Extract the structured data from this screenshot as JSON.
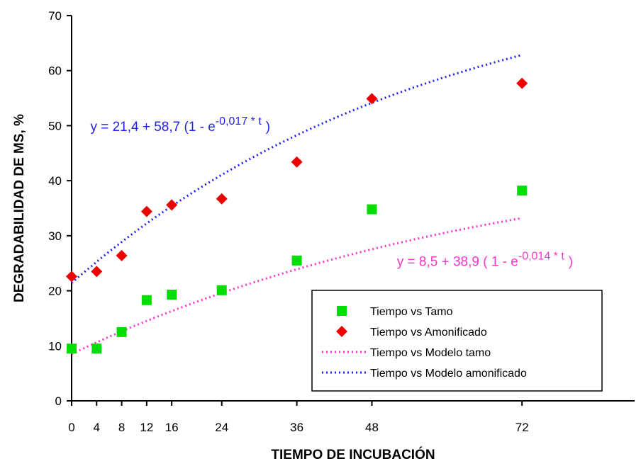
{
  "chart_data": {
    "type": "scatter",
    "xlabel": "TIEMPO DE INCUBACIÓN",
    "ylabel": "DEGRADABILIDAD DE MS, %",
    "xlim": [
      0,
      90
    ],
    "ylim": [
      0,
      70
    ],
    "x_ticks": [
      0,
      4,
      8,
      12,
      16,
      24,
      36,
      48,
      72
    ],
    "y_ticks": [
      0,
      10,
      20,
      30,
      40,
      50,
      60,
      70
    ],
    "grid": false,
    "legend_position": "bottom-right",
    "series": [
      {
        "name": "Tiempo vs Tamo",
        "kind": "points",
        "marker": "square",
        "color": "#00dd00",
        "x": [
          0,
          4,
          8,
          12,
          16,
          24,
          36,
          48,
          72
        ],
        "y": [
          9.5,
          9.5,
          12.5,
          18.3,
          19.3,
          20.1,
          25.5,
          34.8,
          38.2
        ]
      },
      {
        "name": "Tiempo vs Amonificado",
        "kind": "points",
        "marker": "diamond",
        "color": "#ee0000",
        "x": [
          0,
          4,
          8,
          12,
          16,
          24,
          36,
          48,
          72
        ],
        "y": [
          22.6,
          23.5,
          26.4,
          34.4,
          35.6,
          36.7,
          43.4,
          54.9,
          57.7
        ]
      },
      {
        "name": "Tiempo vs Modelo tamo",
        "kind": "line",
        "style": "dotted",
        "color": "#ff33cc",
        "model": {
          "a": 8.5,
          "b": 38.9,
          "c": 0.014
        },
        "x_range": [
          0,
          72
        ]
      },
      {
        "name": "Tiempo vs Modelo amonificado",
        "kind": "line",
        "style": "dotted",
        "color": "#2222ee",
        "model": {
          "a": 21.4,
          "b": 58.7,
          "c": 0.017
        },
        "x_range": [
          0,
          72
        ]
      }
    ],
    "annotations": [
      {
        "series": "Tiempo vs Modelo amonificado",
        "color": "#2222ee",
        "text_main": "y = 21,4 + 58,7 (1 - e",
        "text_sup": "-0,017 * t",
        "text_end": ")",
        "anchor_x": 3,
        "anchor_y": 49
      },
      {
        "series": "Tiempo vs Modelo tamo",
        "color": "#ff33cc",
        "text_main": "y = 8,5 + 38,9 ( 1 - e",
        "text_sup": "-0,014 * t",
        "text_end": ")",
        "anchor_x": 52,
        "anchor_y": 24.5
      }
    ]
  }
}
